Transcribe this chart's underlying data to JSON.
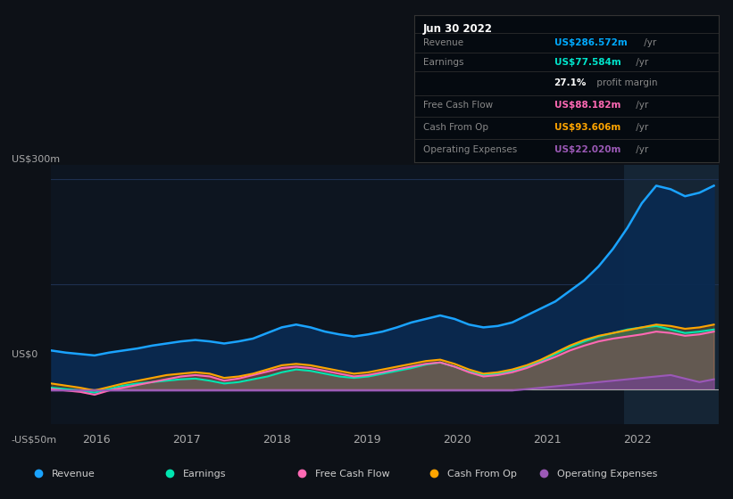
{
  "bg_color": "#0d1117",
  "plot_bg_color": "#0d1520",
  "grid_color": "#1e3050",
  "title_date": "Jun 30 2022",
  "tooltip": {
    "Revenue": {
      "value": "US$286.572m /yr",
      "color": "#00aaff"
    },
    "Earnings": {
      "value": "US$77.584m /yr",
      "color": "#00e5cc"
    },
    "profit_margin": "27.1% profit margin",
    "Free Cash Flow": {
      "value": "US$88.182m /yr",
      "color": "#ff69b4"
    },
    "Cash From Op": {
      "value": "US$93.606m /yr",
      "color": "#ffa500"
    },
    "Operating Expenses": {
      "value": "US$22.020m /yr",
      "color": "#9b59b6"
    }
  },
  "ylim": [
    -50,
    320
  ],
  "xlabel_years": [
    2016,
    2017,
    2018,
    2019,
    2020,
    2021,
    2022
  ],
  "series_colors": {
    "revenue": "#1aa3ff",
    "earnings": "#00e5b0",
    "free_cash_flow": "#ff69b4",
    "cash_from_op": "#ffa500",
    "op_expenses": "#9b59b6"
  },
  "legend": [
    {
      "label": "Revenue",
      "color": "#1aa3ff"
    },
    {
      "label": "Earnings",
      "color": "#00e5b0"
    },
    {
      "label": "Free Cash Flow",
      "color": "#ff69b4"
    },
    {
      "label": "Cash From Op",
      "color": "#ffa500"
    },
    {
      "label": "Operating Expenses",
      "color": "#9b59b6"
    }
  ],
  "revenue": [
    55,
    52,
    50,
    48,
    52,
    55,
    58,
    62,
    65,
    68,
    70,
    68,
    65,
    68,
    72,
    80,
    88,
    92,
    88,
    82,
    78,
    75,
    78,
    82,
    88,
    95,
    100,
    105,
    100,
    92,
    88,
    90,
    95,
    105,
    115,
    125,
    140,
    155,
    175,
    200,
    230,
    265,
    290,
    285,
    275,
    280,
    290
  ],
  "earnings": [
    2,
    0,
    -2,
    -5,
    0,
    5,
    8,
    10,
    12,
    14,
    15,
    12,
    8,
    10,
    14,
    18,
    24,
    28,
    26,
    22,
    18,
    16,
    18,
    22,
    26,
    30,
    35,
    38,
    32,
    25,
    20,
    22,
    26,
    32,
    40,
    50,
    60,
    68,
    75,
    80,
    85,
    88,
    90,
    85,
    80,
    82,
    85
  ],
  "free_cash_flow": [
    0,
    -2,
    -4,
    -8,
    -2,
    2,
    6,
    10,
    14,
    18,
    20,
    18,
    12,
    15,
    20,
    25,
    30,
    32,
    30,
    26,
    22,
    18,
    20,
    24,
    28,
    32,
    36,
    38,
    32,
    24,
    18,
    20,
    24,
    30,
    38,
    46,
    55,
    62,
    68,
    72,
    75,
    78,
    82,
    80,
    76,
    78,
    82
  ],
  "cash_from_op": [
    8,
    5,
    2,
    -2,
    3,
    8,
    12,
    16,
    20,
    22,
    24,
    22,
    16,
    18,
    22,
    28,
    34,
    36,
    34,
    30,
    26,
    22,
    24,
    28,
    32,
    36,
    40,
    42,
    36,
    28,
    22,
    24,
    28,
    34,
    42,
    52,
    62,
    70,
    76,
    80,
    84,
    88,
    92,
    90,
    86,
    88,
    92
  ],
  "op_expenses": [
    -2,
    -2,
    -2,
    -2,
    -2,
    -2,
    -2,
    -2,
    -2,
    -2,
    -2,
    -2,
    -2,
    -2,
    -2,
    -2,
    -2,
    -2,
    -2,
    -2,
    -2,
    -2,
    -2,
    -2,
    -2,
    -2,
    -2,
    -2,
    -2,
    -2,
    -2,
    -2,
    -2,
    0,
    2,
    4,
    6,
    8,
    10,
    12,
    14,
    16,
    18,
    20,
    15,
    10,
    14
  ]
}
